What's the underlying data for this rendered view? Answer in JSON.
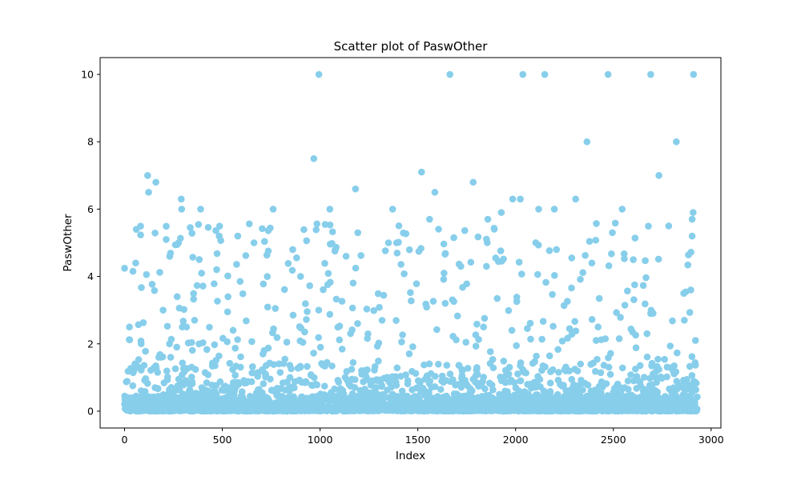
{
  "chart_data": {
    "type": "scatter",
    "title": "Scatter plot of PaswOther",
    "xlabel": "Index",
    "ylabel": "PaswOther",
    "xlim": [
      -125,
      3050
    ],
    "ylim": [
      -0.5,
      10.5
    ],
    "xticks": [
      0,
      500,
      1000,
      1500,
      2000,
      2500,
      3000
    ],
    "yticks": [
      0,
      2,
      4,
      6,
      8,
      10
    ],
    "grid": false,
    "legend": "none",
    "marker_color": "#87CEEB",
    "point_count_approx": 2930,
    "series": [
      {
        "points": [
          [
            25,
            2.5
          ],
          [
            60,
            5.4
          ],
          [
            57,
            4.4
          ],
          [
            85,
            2.0
          ],
          [
            118,
            7.0
          ],
          [
            123,
            6.5
          ],
          [
            160,
            6.8
          ],
          [
            175,
            1.6
          ],
          [
            197,
            3.0
          ],
          [
            213,
            5.1
          ],
          [
            236,
            1.6
          ],
          [
            276,
            5.0
          ],
          [
            290,
            6.3
          ],
          [
            292,
            6.0
          ],
          [
            295,
            2.5
          ],
          [
            317,
            2.5
          ],
          [
            389,
            6.0
          ],
          [
            484,
            5.2
          ],
          [
            579,
            5.2
          ],
          [
            662,
            5.0
          ],
          [
            760,
            6.0
          ],
          [
            860,
            4.8
          ],
          [
            900,
            4.0
          ],
          [
            968,
            7.5
          ],
          [
            994,
            10.0
          ],
          [
            1050,
            6.0
          ],
          [
            1078,
            4.8
          ],
          [
            1133,
            4.6
          ],
          [
            1193,
            5.3
          ],
          [
            1181,
            6.6
          ],
          [
            1350,
            5.0
          ],
          [
            1371,
            6.0
          ],
          [
            1391,
            5.0
          ],
          [
            1519,
            7.1
          ],
          [
            1560,
            5.7
          ],
          [
            1587,
            6.5
          ],
          [
            1634,
            4.1
          ],
          [
            1664,
            10.0
          ],
          [
            1720,
            4.3
          ],
          [
            1783,
            6.8
          ],
          [
            1836,
            2.5
          ],
          [
            1858,
            5.7
          ],
          [
            1927,
            5.9
          ],
          [
            1985,
            6.3
          ],
          [
            2024,
            6.3
          ],
          [
            2037,
            10.0
          ],
          [
            2118,
            6.0
          ],
          [
            2149,
            10.0
          ],
          [
            2198,
            6.0
          ],
          [
            2209,
            4.8
          ],
          [
            2307,
            6.3
          ],
          [
            2365,
            8.0
          ],
          [
            2390,
            4.4
          ],
          [
            2473,
            10.0
          ],
          [
            2495,
            5.3
          ],
          [
            2545,
            6.0
          ],
          [
            2602,
            4.5
          ],
          [
            2691,
            10.0
          ],
          [
            2733,
            7.0
          ],
          [
            2783,
            5.5
          ],
          [
            2822,
            8.0
          ],
          [
            2910,
            10.0
          ],
          [
            2903,
            5.7
          ],
          [
            2908,
            5.9
          ],
          [
            2903,
            5.2
          ],
          [
            2896,
            3.6
          ],
          [
            2863,
            2.7
          ],
          [
            2920,
            2.1
          ]
        ]
      }
    ]
  }
}
